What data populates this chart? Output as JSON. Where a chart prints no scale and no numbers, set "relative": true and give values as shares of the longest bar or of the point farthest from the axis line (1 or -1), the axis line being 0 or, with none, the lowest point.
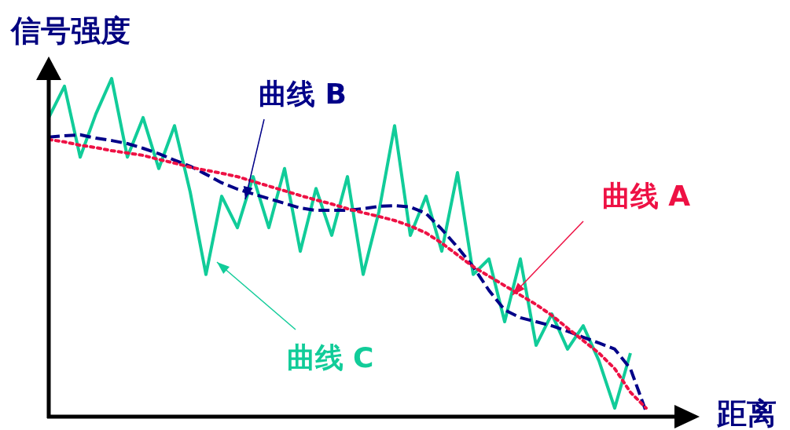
{
  "chart_data": {
    "type": "line",
    "relative": true,
    "xlabel": "距离",
    "ylabel": "信号强度",
    "categories": [
      null,
      null,
      null,
      null,
      null,
      null,
      null,
      null,
      null,
      null,
      null,
      null,
      null,
      null,
      null,
      null,
      null,
      null,
      null,
      null,
      null,
      null,
      null,
      null,
      null,
      null,
      null,
      null,
      null,
      null,
      null,
      null,
      null,
      null,
      null,
      null,
      null,
      null,
      null
    ],
    "series": [
      {
        "name": "曲线 A",
        "color": "#ee1144",
        "line_style": "dotted",
        "values": [
          0.819,
          0.812,
          0.802,
          0.795,
          0.786,
          0.779,
          0.772,
          0.76,
          0.749,
          0.737,
          0.728,
          0.719,
          0.709,
          0.695,
          0.681,
          0.667,
          0.653,
          0.64,
          0.628,
          0.614,
          0.602,
          0.591,
          0.579,
          0.563,
          0.542,
          0.512,
          0.477,
          0.442,
          0.414,
          0.386,
          0.358,
          0.33,
          0.298,
          0.26,
          0.223,
          0.186,
          0.14,
          0.07,
          0.023
        ]
      },
      {
        "name": "曲线 B",
        "color": "#000088",
        "line_style": "dashed",
        "values": [
          0.826,
          0.83,
          0.833,
          0.823,
          0.816,
          0.807,
          0.793,
          0.777,
          0.758,
          0.74,
          0.716,
          0.691,
          0.672,
          0.658,
          0.644,
          0.63,
          0.616,
          0.609,
          0.609,
          0.609,
          0.614,
          0.621,
          0.623,
          0.619,
          0.6,
          0.553,
          0.5,
          0.442,
          0.372,
          0.314,
          0.291,
          0.279,
          0.267,
          0.251,
          0.233,
          0.216,
          0.198,
          0.14,
          0.012
        ]
      },
      {
        "name": "曲线 C",
        "color": "#11cc99",
        "line_style": "solid",
        "values": [
          0.884,
          0.977,
          0.767,
          0.895,
          1.0,
          0.767,
          0.884,
          0.733,
          0.86,
          0.663,
          0.419,
          0.651,
          0.558,
          0.709,
          0.558,
          0.733,
          0.488,
          0.674,
          0.535,
          0.709,
          0.419,
          0.605,
          0.86,
          0.535,
          0.651,
          0.488,
          0.721,
          0.419,
          0.465,
          0.279,
          0.465,
          0.209,
          0.302,
          0.198,
          0.267,
          0.163,
          0.023,
          0.186,
          null
        ]
      }
    ]
  }
}
